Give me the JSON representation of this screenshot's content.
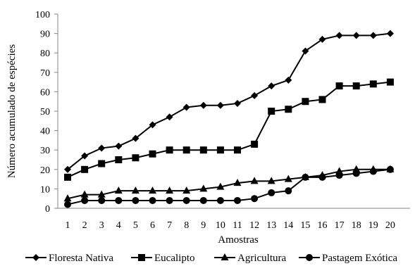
{
  "chart_data": {
    "type": "line",
    "title": "",
    "xlabel": "Amostras",
    "ylabel": "Número acumulado de espécies",
    "ylim": [
      0,
      100
    ],
    "yticks": [
      0,
      10,
      20,
      30,
      40,
      50,
      60,
      70,
      80,
      90,
      100
    ],
    "x": [
      1,
      2,
      3,
      4,
      5,
      6,
      7,
      8,
      9,
      10,
      11,
      12,
      13,
      14,
      15,
      16,
      17,
      18,
      19,
      20
    ],
    "grid": false,
    "legend_position": "bottom",
    "series": [
      {
        "name": "Floresta Nativa",
        "marker": "diamond",
        "values": [
          20,
          27,
          31,
          32,
          36,
          43,
          47,
          52,
          53,
          53,
          54,
          58,
          63,
          66,
          81,
          87,
          89,
          89,
          89,
          90
        ]
      },
      {
        "name": "Eucalipto",
        "marker": "square",
        "values": [
          16,
          20,
          23,
          25,
          26,
          28,
          30,
          30,
          30,
          30,
          30,
          33,
          50,
          51,
          55,
          56,
          63,
          63,
          64,
          65
        ]
      },
      {
        "name": "Agricultura",
        "marker": "triangle",
        "values": [
          5,
          7,
          7,
          9,
          9,
          9,
          9,
          9,
          10,
          11,
          13,
          14,
          14,
          15,
          16,
          17,
          19,
          20,
          20,
          20
        ]
      },
      {
        "name": "Pastagem Exótica",
        "marker": "circle",
        "values": [
          2,
          4,
          4,
          4,
          4,
          4,
          4,
          4,
          4,
          4,
          4,
          5,
          8,
          9,
          16,
          16,
          17,
          18,
          19,
          20
        ]
      }
    ]
  }
}
